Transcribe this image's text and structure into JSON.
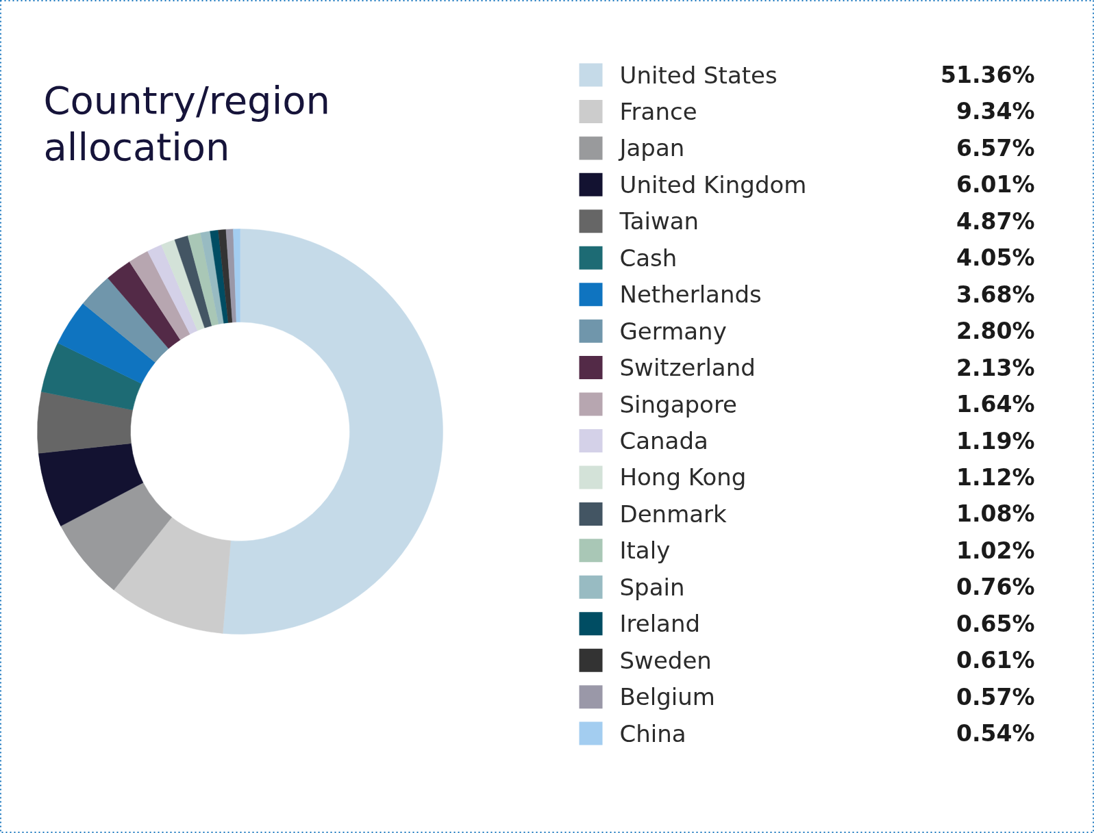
{
  "chart_data": {
    "type": "donut",
    "title": "Country/region allocation",
    "categories": [
      "United States",
      "France",
      "Japan",
      "United Kingdom",
      "Taiwan",
      "Cash",
      "Netherlands",
      "Germany",
      "Switzerland",
      "Singapore",
      "Canada",
      "Hong Kong",
      "Denmark",
      "Italy",
      "Spain",
      "Ireland",
      "Sweden",
      "Belgium",
      "China"
    ],
    "values": [
      51.36,
      9.34,
      6.57,
      6.01,
      4.87,
      4.05,
      3.68,
      2.8,
      2.13,
      1.64,
      1.19,
      1.12,
      1.08,
      1.02,
      0.76,
      0.65,
      0.61,
      0.57,
      0.54
    ],
    "value_labels": [
      "51.36%",
      "9.34%",
      "6.57%",
      "6.01%",
      "4.87%",
      "4.05%",
      "3.68%",
      "2.80%",
      "2.13%",
      "1.64%",
      "1.19%",
      "1.12%",
      "1.08%",
      "1.02%",
      "0.76%",
      "0.65%",
      "0.61%",
      "0.57%",
      "0.54%"
    ],
    "colors": [
      "#c5dae8",
      "#cccccc",
      "#999a9c",
      "#131231",
      "#666666",
      "#1d6b74",
      "#0f74c0",
      "#7096ab",
      "#532a47",
      "#b7a6b0",
      "#d4d1e8",
      "#d3e2d8",
      "#435563",
      "#a9c7b6",
      "#98bbc2",
      "#004d63",
      "#333333",
      "#9a98a8",
      "#a3cdf0"
    ],
    "legend": "right"
  }
}
